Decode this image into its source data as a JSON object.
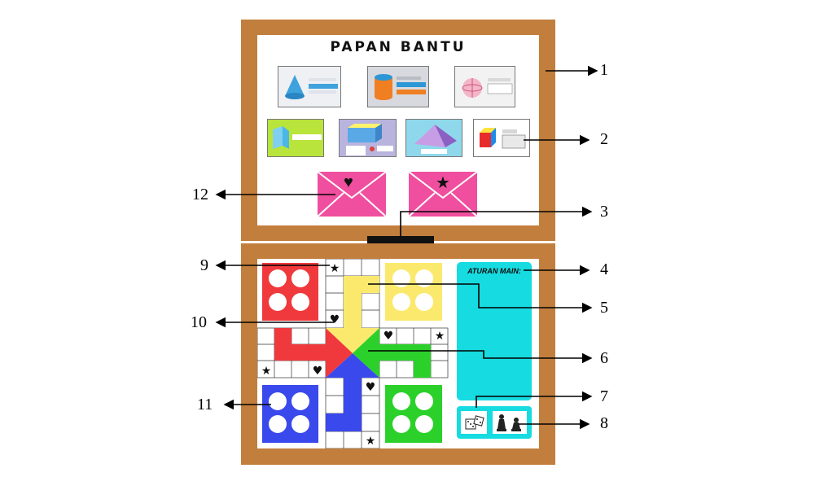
{
  "board": {
    "top_title": "PAPAN BANTU",
    "rules_title": "ATURAN MAIN:"
  },
  "callouts": [
    "1",
    "2",
    "3",
    "4",
    "5",
    "6",
    "7",
    "8",
    "9",
    "10",
    "11",
    "12"
  ],
  "colors": {
    "wood": "#c17e3c",
    "red": "#f0393c",
    "yellow": "#fbe96e",
    "green": "#2bd12a",
    "blue": "#3a49ec",
    "cyan": "#16dbe0",
    "pink": "#ef4f9e"
  },
  "icons": {
    "envelope_left": "heart-icon",
    "envelope_right": "star-icon",
    "dice": "dice-icon",
    "pawns": "pawn-icon"
  }
}
